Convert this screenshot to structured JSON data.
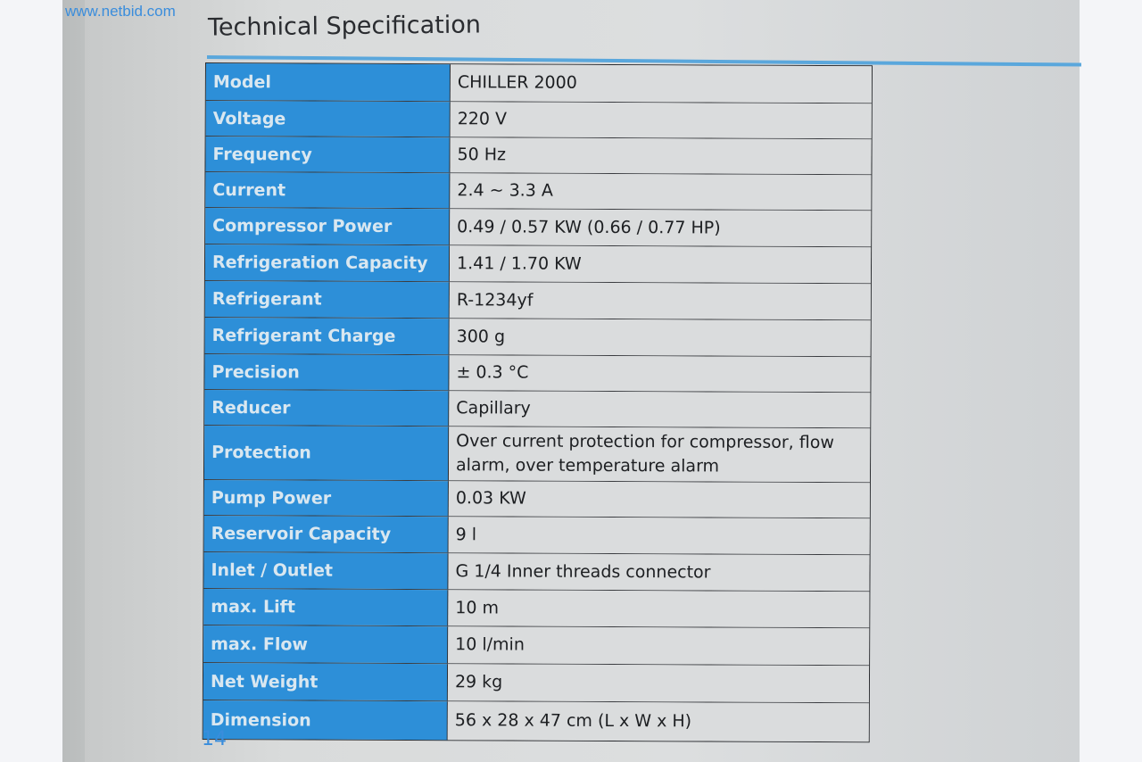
{
  "watermark": "www.netbid.com",
  "title": "Technical Specification",
  "page_number": "14",
  "colors": {
    "header_blue": "#2d8fd8",
    "watermark_blue": "#3a8ddc"
  },
  "rows": [
    {
      "label": "Model",
      "value": "CHILLER 2000"
    },
    {
      "label": "Voltage",
      "value": "220 V"
    },
    {
      "label": "Frequency",
      "value": "50 Hz"
    },
    {
      "label": "Current",
      "value": "2.4 ~ 3.3 A"
    },
    {
      "label": "Compressor Power",
      "value": "0.49 / 0.57 KW (0.66 / 0.77 HP)"
    },
    {
      "label": "Refrigeration Capacity",
      "value": "1.41 / 1.70 KW"
    },
    {
      "label": "Refrigerant",
      "value": "R-1234yf"
    },
    {
      "label": "Refrigerant Charge",
      "value": "300 g"
    },
    {
      "label": "Precision",
      "value": "± 0.3 °C"
    },
    {
      "label": "Reducer",
      "value": "Capillary"
    },
    {
      "label": "Protection",
      "value": "Over current protection for compressor, flow alarm, over temperature alarm"
    },
    {
      "label": "Pump Power",
      "value": "0.03 KW"
    },
    {
      "label": "Reservoir Capacity",
      "value": "9 l"
    },
    {
      "label": "Inlet / Outlet",
      "value": "G 1/4 Inner threads connector"
    },
    {
      "label": "max. Lift",
      "value": "10 m"
    },
    {
      "label": "max. Flow",
      "value": "10 l/min"
    },
    {
      "label": "Net Weight",
      "value": "29 kg"
    },
    {
      "label": "Dimension",
      "value": "56 x 28 x 47 cm (L x W x H)"
    }
  ]
}
